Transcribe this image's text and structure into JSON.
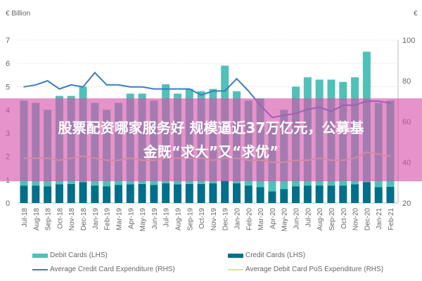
{
  "chart_data": {
    "type": "bar",
    "stacked": true,
    "ylabel_left": "€ Billion",
    "ylabel_right": "€",
    "ylim_left": [
      0,
      7
    ],
    "ylim_right": [
      20,
      100
    ],
    "yticks_left": [
      "0",
      "1",
      "2",
      "3",
      "4",
      "5",
      "6",
      "7"
    ],
    "yticks_right": [
      "20",
      "40",
      "60",
      "80",
      "100"
    ],
    "grid": true,
    "legend_position": "bottom",
    "categories": [
      "Jul-18",
      "Aug-18",
      "Sep-18",
      "Oct-18",
      "Nov-18",
      "Dec-18",
      "Jan-19",
      "Feb-19",
      "Mar-19",
      "Apr-19",
      "May-19",
      "Jun-19",
      "Jul-19",
      "Aug-19",
      "Sep-19",
      "Oct-19",
      "Nov-19",
      "Dec-19",
      "Jan-20",
      "Feb-20",
      "Mar-20",
      "Apr-20",
      "May-20",
      "Jun-20",
      "Jul-20",
      "Aug-20",
      "Sep-20",
      "Oct-20",
      "Nov-20",
      "Dec-20",
      "Jan-21",
      "Feb-21"
    ],
    "series": [
      {
        "name": "Credit Cards (LHS)",
        "axis": "left",
        "kind": "bar",
        "color": "#00708a",
        "values": [
          0.75,
          0.75,
          0.72,
          0.8,
          0.82,
          0.9,
          0.75,
          0.72,
          0.78,
          0.8,
          0.82,
          0.78,
          0.85,
          0.8,
          0.82,
          0.82,
          0.85,
          0.95,
          0.85,
          0.75,
          0.68,
          0.5,
          0.6,
          0.72,
          0.75,
          0.75,
          0.75,
          0.75,
          0.8,
          0.9,
          0.68,
          0.7
        ]
      },
      {
        "name": "Debit Cards (LHS)",
        "axis": "left",
        "kind": "bar",
        "color": "#4fc1b8",
        "values": [
          3.65,
          3.55,
          3.28,
          3.8,
          3.78,
          4.1,
          3.55,
          3.28,
          3.52,
          3.9,
          3.88,
          3.62,
          4.25,
          3.9,
          4.08,
          3.98,
          4.05,
          4.95,
          3.95,
          3.65,
          3.82,
          3.0,
          3.4,
          4.28,
          4.65,
          4.55,
          4.55,
          4.45,
          4.6,
          5.6,
          3.62,
          3.7
        ]
      },
      {
        "name": "Average Credit Card Expenditure (RHS)",
        "axis": "right",
        "kind": "line",
        "color": "#3a7cc0",
        "values": [
          77,
          78,
          80,
          76,
          78,
          77,
          84,
          78,
          78,
          77,
          77,
          76,
          76,
          76,
          76,
          73,
          75,
          75,
          81,
          75,
          68,
          62,
          63,
          64,
          66,
          67,
          65,
          68,
          68,
          70,
          70,
          69
        ]
      },
      {
        "name": "Average Debit Card PoS Expenditure (RHS)",
        "axis": "right",
        "kind": "line",
        "color": "#d6e59c",
        "values": [
          42,
          42,
          42,
          41,
          42,
          43,
          42,
          41,
          41,
          42,
          41,
          41,
          42,
          42,
          42,
          42,
          41,
          42,
          42,
          41,
          41,
          40,
          40,
          41,
          41,
          42,
          41,
          41,
          42,
          45,
          44,
          43
        ]
      }
    ]
  },
  "overlay": {
    "line1": "股票配资哪家服务好 规模逼近37万亿元，公募基",
    "line2": "金既“求大”又“求优”"
  }
}
